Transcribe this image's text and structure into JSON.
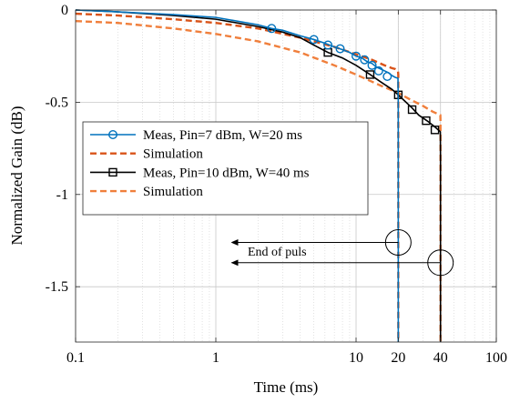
{
  "chart_data": {
    "type": "line",
    "xscale": "log",
    "xlim": [
      0.1,
      100
    ],
    "ylim": [
      -1.8,
      0
    ],
    "grid": true,
    "legend_position": "center-left",
    "xlabel": "Time (ms)",
    "ylabel": "Normalized Gain (dB)",
    "xticks": [
      {
        "value": 0.1,
        "label": "0.1"
      },
      {
        "value": 1,
        "label": "1"
      },
      {
        "value": 10,
        "label": "10"
      },
      {
        "value": 20,
        "label": "20"
      },
      {
        "value": 40,
        "label": "40"
      },
      {
        "value": 100,
        "label": "100"
      }
    ],
    "yticks": [
      {
        "value": 0,
        "label": "0"
      },
      {
        "value": -0.5,
        "label": "-0.5"
      },
      {
        "value": -1,
        "label": "-1"
      },
      {
        "value": -1.5,
        "label": "-1.5"
      }
    ],
    "series": [
      {
        "name": "Meas, Pin=7 dBm, W=20 ms",
        "color": "#0072BD",
        "dash": "solid",
        "marker": "circle",
        "x": [
          0.1,
          0.2,
          0.5,
          1,
          2,
          2.5,
          3,
          4,
          5,
          6,
          7,
          8,
          9,
          10,
          11,
          12,
          13,
          14,
          15,
          16,
          17,
          18,
          19,
          19.9,
          19.99,
          20
        ],
        "y": [
          0,
          -0.01,
          -0.025,
          -0.04,
          -0.08,
          -0.1,
          -0.11,
          -0.14,
          -0.16,
          -0.18,
          -0.2,
          -0.215,
          -0.23,
          -0.25,
          -0.26,
          -0.28,
          -0.29,
          -0.31,
          -0.32,
          -0.33,
          -0.34,
          -0.355,
          -0.365,
          -0.37,
          -0.5,
          -1.8
        ],
        "marker_x": [
          2.5,
          5,
          6.3,
          7.7,
          10,
          11.5,
          13,
          14.5,
          16.7
        ],
        "marker_y": [
          -0.1,
          -0.16,
          -0.19,
          -0.21,
          -0.25,
          -0.27,
          -0.3,
          -0.33,
          -0.36
        ]
      },
      {
        "name": "Simulation",
        "color": "#D95319",
        "dash": "dashed",
        "x": [
          0.1,
          0.2,
          0.5,
          1,
          2,
          4,
          7,
          10,
          13,
          16,
          18,
          19,
          19.9,
          20,
          20
        ],
        "y": [
          -0.02,
          -0.03,
          -0.05,
          -0.07,
          -0.1,
          -0.15,
          -0.2,
          -0.24,
          -0.27,
          -0.3,
          -0.315,
          -0.32,
          -0.33,
          -0.35,
          -1.8
        ]
      },
      {
        "name": "Meas, Pin=10 dBm, W=40 ms",
        "color": "#000000",
        "dash": "solid",
        "marker": "square",
        "x": [
          0.1,
          0.2,
          0.5,
          1,
          2,
          3,
          4,
          5,
          6.3,
          8,
          10,
          12.6,
          15,
          18,
          20,
          22,
          25,
          28,
          32,
          36,
          39.9,
          40,
          40
        ],
        "y": [
          0,
          -0.01,
          -0.03,
          -0.05,
          -0.09,
          -0.12,
          -0.15,
          -0.19,
          -0.23,
          -0.26,
          -0.3,
          -0.35,
          -0.39,
          -0.43,
          -0.46,
          -0.49,
          -0.53,
          -0.57,
          -0.6,
          -0.63,
          -0.66,
          -0.8,
          -1.8
        ],
        "marker_x": [
          6.3,
          12.6,
          20,
          25.1,
          31.6,
          36.5
        ],
        "marker_y": [
          -0.23,
          -0.35,
          -0.46,
          -0.54,
          -0.6,
          -0.65
        ]
      },
      {
        "name": "Simulation",
        "color": "#F07F3C",
        "dash": "dashed",
        "x": [
          0.1,
          0.2,
          0.5,
          1,
          2,
          4,
          7,
          10,
          15,
          20,
          25,
          30,
          35,
          39.9,
          40,
          40
        ],
        "y": [
          -0.06,
          -0.07,
          -0.1,
          -0.13,
          -0.17,
          -0.23,
          -0.3,
          -0.35,
          -0.41,
          -0.45,
          -0.49,
          -0.52,
          -0.55,
          -0.57,
          -0.6,
          -1.8
        ]
      }
    ],
    "annotation": {
      "text": "End of puls",
      "arrows": [
        {
          "from_x": 20,
          "y": -1.26,
          "to_x": 1.3
        },
        {
          "from_x": 40,
          "y": -1.37,
          "to_x": 1.3
        }
      ],
      "circles": [
        {
          "x": 20,
          "y": -1.26
        },
        {
          "x": 40,
          "y": -1.37
        }
      ]
    }
  }
}
